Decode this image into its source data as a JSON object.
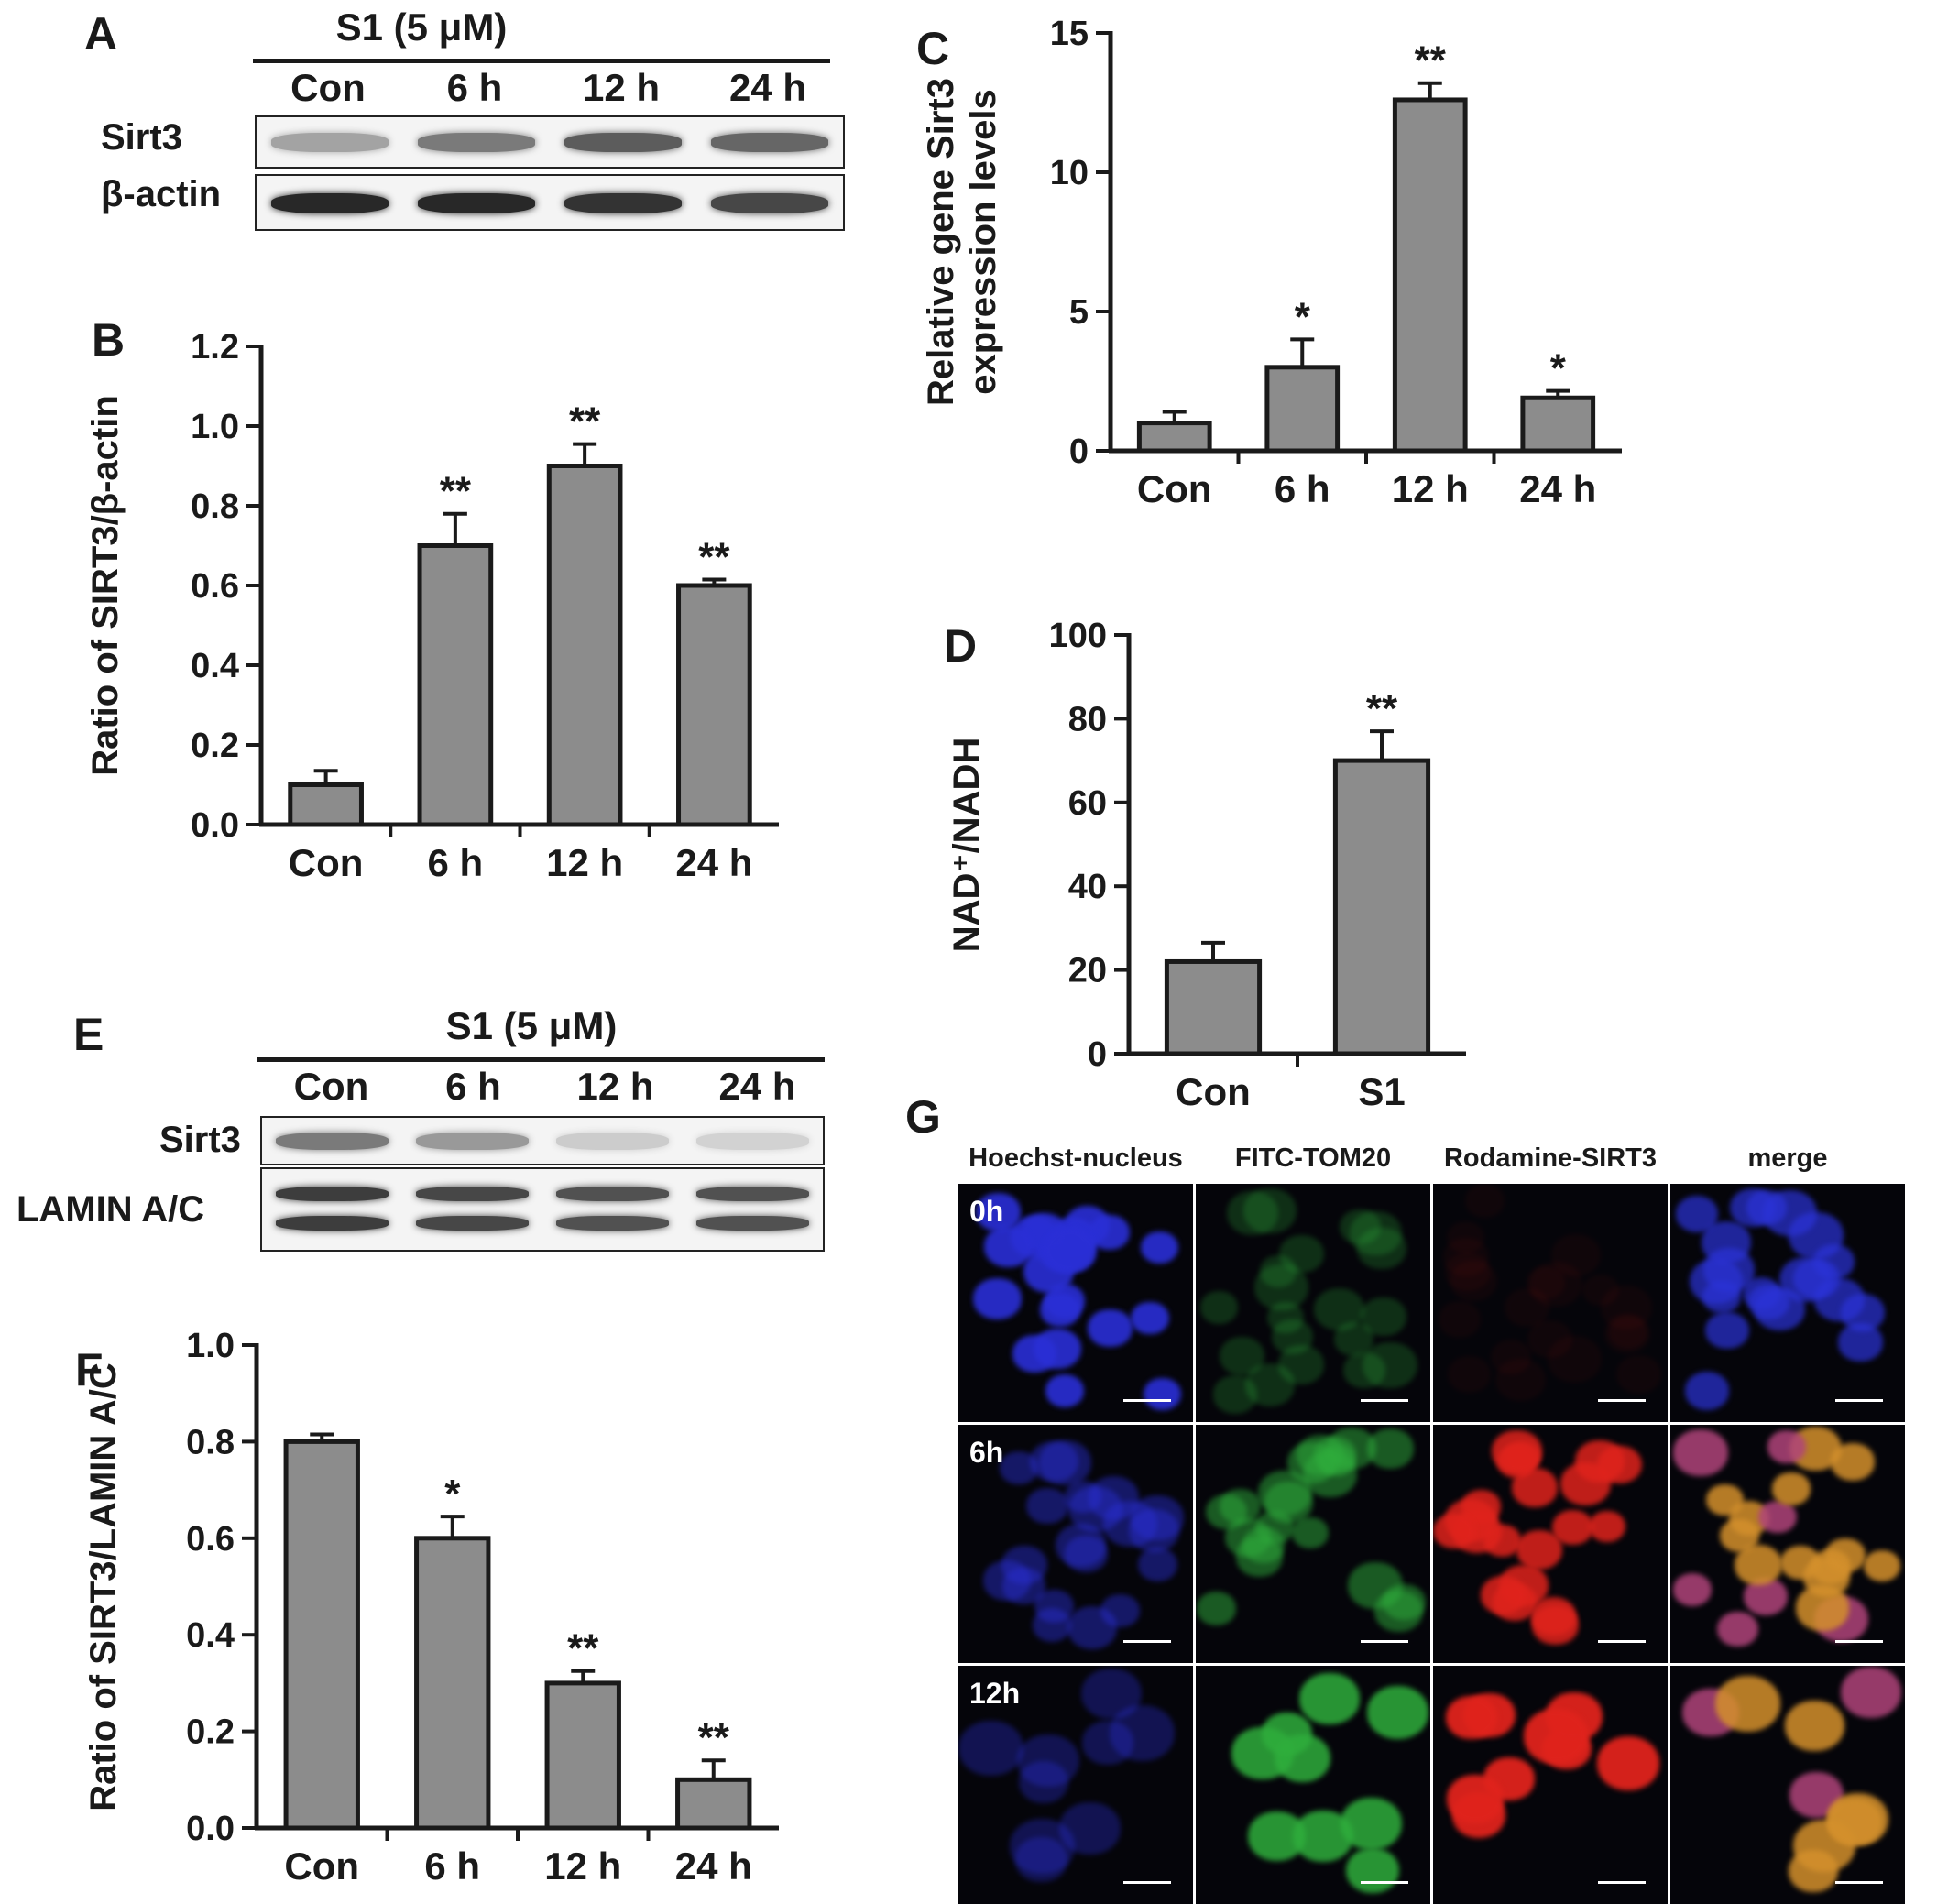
{
  "panel_letters": {
    "a": "A",
    "b": "B",
    "c": "C",
    "d": "D",
    "e": "E",
    "f": "F",
    "g": "G"
  },
  "blot_a": {
    "treatment": "S1 (5 μM)",
    "lanes": [
      "Con",
      "6 h",
      "12 h",
      "24 h"
    ],
    "rows": [
      "Sirt3",
      "β-actin"
    ],
    "band_intensity": {
      "Sirt3": [
        0.35,
        0.55,
        0.7,
        0.65
      ],
      "β-actin": [
        0.95,
        0.95,
        0.9,
        0.8
      ]
    }
  },
  "blot_e": {
    "treatment": "S1 (5 μM)",
    "lanes": [
      "Con",
      "6 h",
      "12 h",
      "24 h"
    ],
    "rows": [
      "Sirt3",
      "LAMIN A/C"
    ],
    "band_intensity": {
      "Sirt3": [
        0.55,
        0.4,
        0.15,
        0.12
      ],
      "LAMIN A/C": [
        0.85,
        0.8,
        0.75,
        0.75
      ]
    }
  },
  "colors": {
    "bar": "#8c8c8c",
    "axis": "#1a1a1a"
  },
  "chart_data": [
    {
      "id": "B",
      "type": "bar",
      "categories": [
        "Con",
        "6 h",
        "12 h",
        "24 h"
      ],
      "values": [
        0.1,
        0.7,
        0.9,
        0.6
      ],
      "errors": [
        0.035,
        0.08,
        0.055,
        0.015
      ],
      "significance": [
        "",
        "**",
        "**",
        "**"
      ],
      "ylabel": "Ratio of SIRT3/β-actin",
      "ylim": [
        0,
        1.2
      ],
      "yticks": [
        0.0,
        0.2,
        0.4,
        0.6,
        0.8,
        1.0,
        1.2
      ],
      "ytick_labels": [
        "0.0",
        "0.2",
        "0.4",
        "0.6",
        "0.8",
        "1.0",
        "1.2"
      ]
    },
    {
      "id": "C",
      "type": "bar",
      "categories": [
        "Con",
        "6 h",
        "12 h",
        "24 h"
      ],
      "values": [
        1.0,
        3.0,
        12.6,
        1.9
      ],
      "errors": [
        0.4,
        1.0,
        0.6,
        0.25
      ],
      "significance": [
        "",
        "*",
        "**",
        "*"
      ],
      "ylabel": "Relative gene Sirt3 expression levels",
      "ylim": [
        0,
        15
      ],
      "yticks": [
        0,
        5,
        10,
        15
      ],
      "ytick_labels": [
        "0",
        "5",
        "10",
        "15"
      ]
    },
    {
      "id": "D",
      "type": "bar",
      "categories": [
        "Con",
        "S1"
      ],
      "values": [
        22,
        70
      ],
      "errors": [
        4.5,
        7
      ],
      "significance": [
        "",
        "**"
      ],
      "ylabel": "NAD⁺/NADH",
      "ylim": [
        0,
        100
      ],
      "yticks": [
        0,
        20,
        40,
        60,
        80,
        100
      ],
      "ytick_labels": [
        "0",
        "20",
        "40",
        "60",
        "80",
        "100"
      ]
    },
    {
      "id": "F",
      "type": "bar",
      "categories": [
        "Con",
        "6 h",
        "12 h",
        "24 h"
      ],
      "values": [
        0.8,
        0.6,
        0.3,
        0.1
      ],
      "errors": [
        0.015,
        0.045,
        0.025,
        0.04
      ],
      "significance": [
        "",
        "*",
        "**",
        "**"
      ],
      "ylabel": "Ratio of SIRT3/LAMIN A/C",
      "ylim": [
        0,
        1.0
      ],
      "yticks": [
        0.0,
        0.2,
        0.4,
        0.6,
        0.8,
        1.0
      ],
      "ytick_labels": [
        "0.0",
        "0.2",
        "0.4",
        "0.6",
        "0.8",
        "1.0"
      ]
    }
  ],
  "panel_g": {
    "columns": [
      "Hoechst-nucleus",
      "FITC-TOM20",
      "Rodamine-SIRT3",
      "merge"
    ],
    "rows": [
      "0h",
      "6h",
      "12h"
    ]
  }
}
